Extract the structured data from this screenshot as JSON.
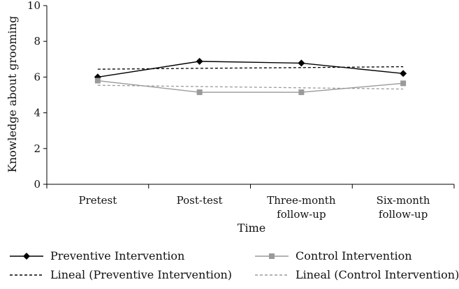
{
  "chart_data": {
    "type": "line",
    "title": "",
    "xlabel": "Time",
    "ylabel": "Knowledge about grooming",
    "ylim": [
      0,
      10
    ],
    "yticks": [
      0,
      2,
      4,
      6,
      8,
      10
    ],
    "categories": [
      [
        "Pretest"
      ],
      [
        "Post-test"
      ],
      [
        "Three-month",
        "follow-up"
      ],
      [
        "Six-month",
        "follow-up"
      ]
    ],
    "grid": false,
    "legend_position": "bottom",
    "series": [
      {
        "name": "Preventive Intervention",
        "values": [
          6.0,
          6.88,
          6.78,
          6.2
        ],
        "color": "#000000",
        "marker": "diamond",
        "dash": "solid"
      },
      {
        "name": "Control Intervention",
        "values": [
          5.8,
          5.15,
          5.15,
          5.65
        ],
        "color": "#9a9a9a",
        "marker": "square",
        "dash": "solid"
      },
      {
        "name": "Lineal (Preventive Intervention)",
        "values": [
          6.44,
          6.49,
          6.53,
          6.58
        ],
        "color": "#000000",
        "marker": "none",
        "dash": "dashed"
      },
      {
        "name": "Lineal (Control Intervention)",
        "values": [
          5.54,
          5.47,
          5.4,
          5.33
        ],
        "color": "#9a9a9a",
        "marker": "none",
        "dash": "dashed"
      }
    ]
  }
}
